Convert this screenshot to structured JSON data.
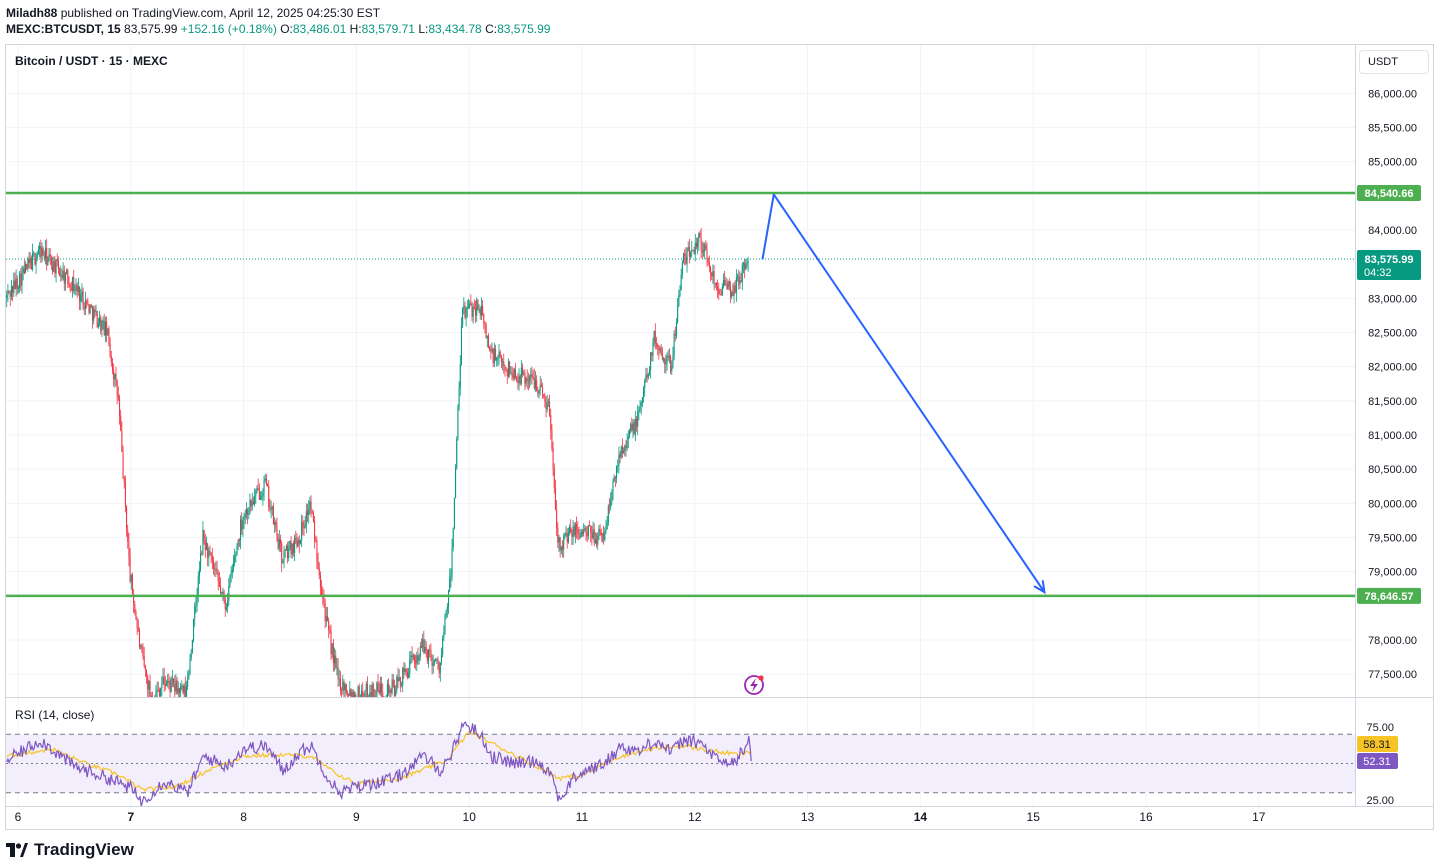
{
  "header": {
    "author": "Miladh88",
    "published_text": "published on TradingView.com, April 12, 2025 04:25:30 EST",
    "symbol_line": "MEXC:BTCUSDT, 15",
    "price": "83,575.99",
    "change": "+152.16 (+0.18%)",
    "open_label": "O:",
    "open": "83,486.01",
    "high_label": "H:",
    "high": "83,579.71",
    "low_label": "L:",
    "low": "83,434.78",
    "close_label": "C:",
    "close": "83,575.99"
  },
  "chart_title": "Bitcoin / USDT · 15 · MEXC",
  "currency_button": "USDT",
  "rsi_title": "RSI (14, close)",
  "footer_brand": "TradingView",
  "colors": {
    "up": "#089981",
    "down": "#f23645",
    "level": "#4caf50",
    "arrow": "#2962ff",
    "rsi": "#7e57c2",
    "rsi_ma": "#f7c325",
    "rsi_band": "#f3eefc"
  },
  "chart_data": {
    "type": "candlestick",
    "interval": "15",
    "y_ticks": [
      "86,000.00",
      "85,500.00",
      "85,000.00",
      "84,000.00",
      "83,000.00",
      "82,500.00",
      "82,000.00",
      "81,500.00",
      "81,000.00",
      "80,500.00",
      "80,000.00",
      "79,500.00",
      "79,000.00",
      "78,000.00",
      "77,500.00"
    ],
    "y_range": [
      77350,
      86200
    ],
    "x_ticks": [
      {
        "label": "6",
        "day": 6
      },
      {
        "label": "7",
        "day": 7
      },
      {
        "label": "8",
        "day": 8
      },
      {
        "label": "9",
        "day": 9
      },
      {
        "label": "10",
        "day": 10
      },
      {
        "label": "11",
        "day": 11
      },
      {
        "label": "12",
        "day": 12
      },
      {
        "label": "13",
        "day": 13
      },
      {
        "label": "14",
        "day": 14
      },
      {
        "label": "15",
        "day": 15
      },
      {
        "label": "16",
        "day": 16
      },
      {
        "label": "17",
        "day": 17
      }
    ],
    "bold_x_ticks": [
      "7",
      "14"
    ],
    "price_path": [
      [
        5.9,
        83000
      ],
      [
        6.2,
        83700
      ],
      [
        6.5,
        83200
      ],
      [
        6.8,
        82500
      ],
      [
        6.9,
        81500
      ],
      [
        7.0,
        79000
      ],
      [
        7.1,
        77800
      ],
      [
        7.2,
        77100
      ],
      [
        7.3,
        77400
      ],
      [
        7.5,
        77200
      ],
      [
        7.65,
        79500
      ],
      [
        7.85,
        78500
      ],
      [
        8.0,
        79800
      ],
      [
        8.2,
        80300
      ],
      [
        8.35,
        79200
      ],
      [
        8.5,
        79500
      ],
      [
        8.6,
        80000
      ],
      [
        8.75,
        78200
      ],
      [
        8.85,
        77400
      ],
      [
        9.0,
        77200
      ],
      [
        9.35,
        77300
      ],
      [
        9.6,
        77900
      ],
      [
        9.75,
        77600
      ],
      [
        9.85,
        79000
      ],
      [
        9.95,
        82800
      ],
      [
        10.1,
        82900
      ],
      [
        10.2,
        82200
      ],
      [
        10.4,
        81900
      ],
      [
        10.6,
        81800
      ],
      [
        10.72,
        81400
      ],
      [
        10.8,
        79400
      ],
      [
        10.95,
        79600
      ],
      [
        11.2,
        79500
      ],
      [
        11.35,
        80800
      ],
      [
        11.5,
        81200
      ],
      [
        11.65,
        82400
      ],
      [
        11.8,
        82000
      ],
      [
        11.9,
        83500
      ],
      [
        12.05,
        83900
      ],
      [
        12.2,
        83200
      ],
      [
        12.35,
        83100
      ],
      [
        12.48,
        83570
      ]
    ],
    "levels": [
      {
        "value": 84540.66,
        "label": "84,540.66"
      },
      {
        "value": 78646.57,
        "label": "78,646.57"
      }
    ],
    "last_price": {
      "value": 83575.99,
      "label": "83,575.99",
      "countdown": "04:32"
    },
    "projection": [
      [
        12.6,
        83570
      ],
      [
        12.7,
        84520
      ],
      [
        15.1,
        78700
      ]
    ],
    "rsi": {
      "y_ticks": [
        "75.00",
        "25.00"
      ],
      "range": [
        18,
        82
      ],
      "bands": [
        70,
        50,
        30
      ],
      "rsi_value": "52.31",
      "ma_value": "58.31",
      "path": [
        [
          5.9,
          52
        ],
        [
          6.2,
          66
        ],
        [
          6.5,
          48
        ],
        [
          6.8,
          40
        ],
        [
          7.0,
          33
        ],
        [
          7.1,
          24
        ],
        [
          7.3,
          38
        ],
        [
          7.5,
          30
        ],
        [
          7.65,
          55
        ],
        [
          7.85,
          48
        ],
        [
          8.0,
          60
        ],
        [
          8.2,
          62
        ],
        [
          8.35,
          45
        ],
        [
          8.5,
          58
        ],
        [
          8.6,
          62
        ],
        [
          8.75,
          40
        ],
        [
          8.85,
          30
        ],
        [
          9.0,
          34
        ],
        [
          9.35,
          40
        ],
        [
          9.6,
          55
        ],
        [
          9.75,
          45
        ],
        [
          9.85,
          58
        ],
        [
          9.95,
          78
        ],
        [
          10.1,
          70
        ],
        [
          10.2,
          55
        ],
        [
          10.4,
          50
        ],
        [
          10.6,
          52
        ],
        [
          10.72,
          44
        ],
        [
          10.8,
          25
        ],
        [
          10.95,
          42
        ],
        [
          11.2,
          50
        ],
        [
          11.35,
          62
        ],
        [
          11.5,
          58
        ],
        [
          11.65,
          66
        ],
        [
          11.8,
          58
        ],
        [
          11.9,
          66
        ],
        [
          12.05,
          64
        ],
        [
          12.2,
          52
        ],
        [
          12.35,
          50
        ],
        [
          12.48,
          66
        ],
        [
          12.5,
          52
        ]
      ],
      "ma_path": [
        [
          5.9,
          55
        ],
        [
          6.3,
          60
        ],
        [
          6.6,
          50
        ],
        [
          6.9,
          42
        ],
        [
          7.1,
          32
        ],
        [
          7.4,
          34
        ],
        [
          7.7,
          46
        ],
        [
          8.0,
          55
        ],
        [
          8.3,
          56
        ],
        [
          8.6,
          55
        ],
        [
          8.8,
          44
        ],
        [
          9.0,
          36
        ],
        [
          9.4,
          40
        ],
        [
          9.8,
          52
        ],
        [
          10.0,
          72
        ],
        [
          10.2,
          64
        ],
        [
          10.5,
          52
        ],
        [
          10.8,
          40
        ],
        [
          11.0,
          42
        ],
        [
          11.3,
          54
        ],
        [
          11.6,
          60
        ],
        [
          11.9,
          62
        ],
        [
          12.2,
          58
        ],
        [
          12.4,
          56
        ],
        [
          12.5,
          58
        ]
      ]
    }
  }
}
